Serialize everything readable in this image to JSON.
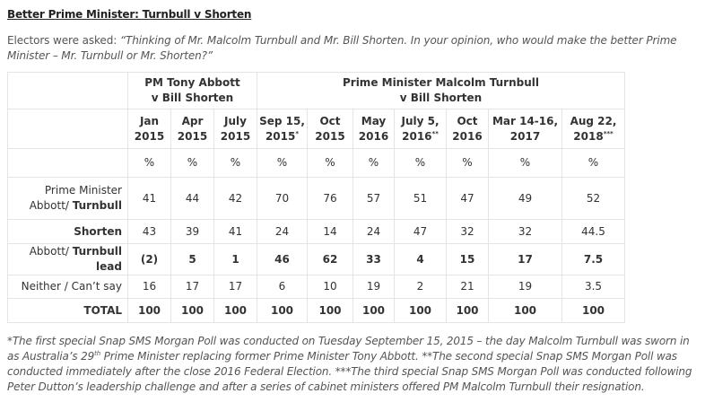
{
  "title": "Better Prime Minister: Turnbull v Shorten",
  "question": {
    "prefix": "Electors were asked:",
    "text": "“Thinking of Mr. Malcolm Turnbull and Mr. Bill Shorten. In your opinion, who would make the better Prime Minister – Mr. Turnbull or Mr. Shorten?”"
  },
  "table": {
    "group_headers": {
      "abbott_line1": "PM Tony Abbott",
      "abbott_line2": "v Bill Shorten",
      "turnbull_line1": "Prime Minister Malcolm Turnbull",
      "turnbull_line2": "v Bill Shorten"
    },
    "columns": [
      {
        "line1": "Jan",
        "line2": "2015",
        "sup": ""
      },
      {
        "line1": "Apr",
        "line2": "2015",
        "sup": ""
      },
      {
        "line1": "July",
        "line2": "2015",
        "sup": ""
      },
      {
        "line1": "Sep 15,",
        "line2": "2015",
        "sup": "*"
      },
      {
        "line1": "Oct",
        "line2": "2015",
        "sup": ""
      },
      {
        "line1": "May",
        "line2": "2016",
        "sup": ""
      },
      {
        "line1": "July 5,",
        "line2": "2016",
        "sup": "**"
      },
      {
        "line1": "Oct",
        "line2": "2016",
        "sup": ""
      },
      {
        "line1": "Mar 14-16,",
        "line2": "2017",
        "sup": ""
      },
      {
        "line1": "Aug 22,",
        "line2": "2018",
        "sup": "***"
      }
    ],
    "unit": "%",
    "rows": [
      {
        "label_plain": "Prime Minister",
        "label_plain2": "Abbott/ ",
        "label_bold": "Turnbull",
        "values": [
          "41",
          "44",
          "42",
          "70",
          "76",
          "57",
          "51",
          "47",
          "49",
          "52"
        ]
      },
      {
        "label": "Shorten",
        "values": [
          "43",
          "39",
          "41",
          "24",
          "14",
          "24",
          "47",
          "32",
          "32",
          "44.5"
        ]
      },
      {
        "label_plain": "Abbott/ ",
        "label_bold": "Turnbull lead",
        "values": [
          "(2)",
          "5",
          "1",
          "46",
          "62",
          "33",
          "4",
          "15",
          "17",
          "7.5"
        ]
      },
      {
        "label": "Neither / Can’t say",
        "values": [
          "16",
          "17",
          "17",
          "6",
          "10",
          "19",
          "2",
          "21",
          "19",
          "3.5"
        ]
      },
      {
        "label": "TOTAL",
        "values": [
          "100",
          "100",
          "100",
          "100",
          "100",
          "100",
          "100",
          "100",
          "100",
          "100"
        ]
      }
    ]
  },
  "footnote": {
    "part1": "*The first special Snap SMS Morgan Poll was conducted on Tuesday September 15, 2015 – the day Malcolm Turnbull was sworn in as Australia’s 29",
    "sup": "th",
    "part2": " Prime Minister replacing former Prime Minister Tony Abbott. **The second special Snap SMS Morgan Poll was conducted immediately after the close 2016 Federal Election. ***The third special Snap SMS Morgan Poll was conducted following Peter Dutton’s leadership challenge and after a series of cabinet ministers offered PM Malcolm Turnbull their resignation."
  }
}
